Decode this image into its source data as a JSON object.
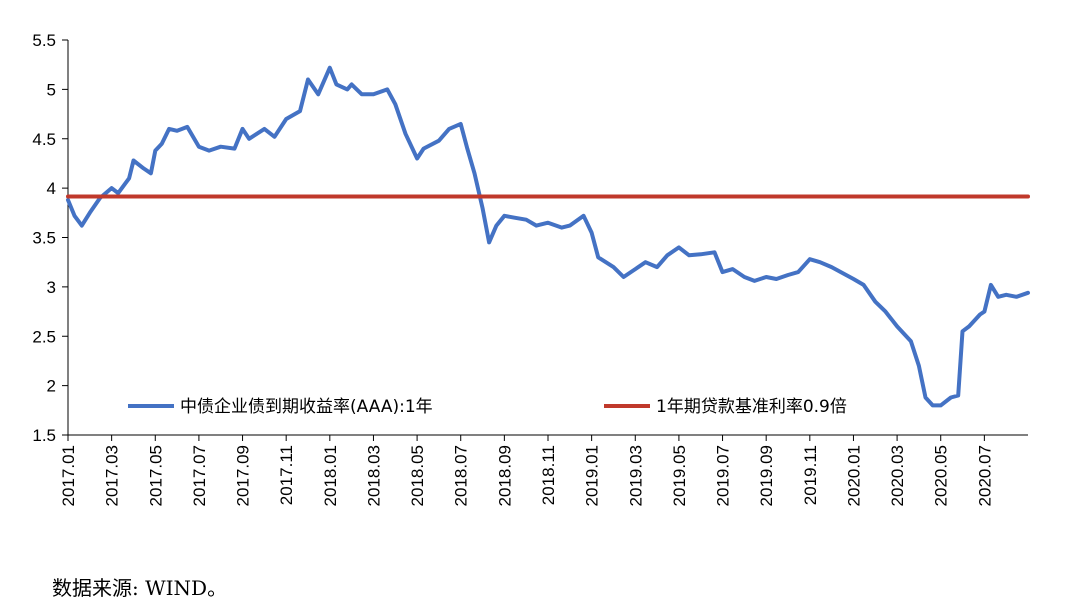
{
  "chart_data": {
    "type": "line",
    "title": "",
    "xlabel": "",
    "ylabel": "",
    "ylim": [
      1.5,
      5.5
    ],
    "yticks": [
      "5.5",
      "5",
      "4.5",
      "4",
      "3.5",
      "3",
      "2.5",
      "2",
      "1.5"
    ],
    "xlim": [
      "2017.01",
      "2020.09"
    ],
    "xticks": [
      "2017.01",
      "2017.03",
      "2017.05",
      "2017.07",
      "2017.09",
      "2017.11",
      "2018.01",
      "2018.03",
      "2018.05",
      "2018.07",
      "2018.09",
      "2018.11",
      "2019.01",
      "2019.03",
      "2019.05",
      "2019.07",
      "2019.09",
      "2019.11",
      "2020.01",
      "2020.03",
      "2020.05",
      "2020.07"
    ],
    "grid": false,
    "legend_position": "bottom",
    "series": [
      {
        "name": "中债企业债到期收益率(AAA):1年",
        "color": "#4472C4",
        "points": [
          [
            "2017.01",
            3.88
          ],
          [
            "2017.01.10",
            3.72
          ],
          [
            "2017.01.20",
            3.62
          ],
          [
            "2017.02",
            3.75
          ],
          [
            "2017.02.15",
            3.9
          ],
          [
            "2017.03",
            4.0
          ],
          [
            "2017.03.10",
            3.95
          ],
          [
            "2017.03.25",
            4.1
          ],
          [
            "2017.04",
            4.28
          ],
          [
            "2017.04.15",
            4.2
          ],
          [
            "2017.04.25",
            4.15
          ],
          [
            "2017.05",
            4.38
          ],
          [
            "2017.05.10",
            4.45
          ],
          [
            "2017.05.20",
            4.6
          ],
          [
            "2017.06",
            4.58
          ],
          [
            "2017.06.15",
            4.62
          ],
          [
            "2017.07",
            4.42
          ],
          [
            "2017.07.15",
            4.38
          ],
          [
            "2017.08",
            4.42
          ],
          [
            "2017.08.20",
            4.4
          ],
          [
            "2017.09",
            4.6
          ],
          [
            "2017.09.10",
            4.5
          ],
          [
            "2017.10",
            4.6
          ],
          [
            "2017.10.15",
            4.52
          ],
          [
            "2017.11",
            4.7
          ],
          [
            "2017.11.20",
            4.78
          ],
          [
            "2017.12",
            5.1
          ],
          [
            "2017.12.15",
            4.95
          ],
          [
            "2018.01",
            5.22
          ],
          [
            "2018.01.10",
            5.05
          ],
          [
            "2018.01.25",
            5.0
          ],
          [
            "2018.02",
            5.05
          ],
          [
            "2018.02.15",
            4.95
          ],
          [
            "2018.03",
            4.95
          ],
          [
            "2018.03.20",
            5.0
          ],
          [
            "2018.04",
            4.85
          ],
          [
            "2018.04.15",
            4.55
          ],
          [
            "2018.05",
            4.3
          ],
          [
            "2018.05.10",
            4.4
          ],
          [
            "2018.06",
            4.48
          ],
          [
            "2018.06.15",
            4.6
          ],
          [
            "2018.07",
            4.65
          ],
          [
            "2018.07.10",
            4.4
          ],
          [
            "2018.07.20",
            4.15
          ],
          [
            "2018.08",
            3.8
          ],
          [
            "2018.08.10",
            3.45
          ],
          [
            "2018.08.20",
            3.62
          ],
          [
            "2018.09",
            3.72
          ],
          [
            "2018.09.15",
            3.7
          ],
          [
            "2018.10",
            3.68
          ],
          [
            "2018.10.15",
            3.62
          ],
          [
            "2018.11",
            3.65
          ],
          [
            "2018.11.20",
            3.6
          ],
          [
            "2018.12",
            3.62
          ],
          [
            "2018.12.20",
            3.72
          ],
          [
            "2019.01",
            3.55
          ],
          [
            "2019.01.10",
            3.3
          ],
          [
            "2019.02",
            3.2
          ],
          [
            "2019.02.15",
            3.1
          ],
          [
            "2019.03",
            3.18
          ],
          [
            "2019.03.15",
            3.25
          ],
          [
            "2019.04",
            3.2
          ],
          [
            "2019.04.15",
            3.32
          ],
          [
            "2019.05",
            3.4
          ],
          [
            "2019.05.15",
            3.32
          ],
          [
            "2019.06",
            3.33
          ],
          [
            "2019.06.20",
            3.35
          ],
          [
            "2019.07",
            3.15
          ],
          [
            "2019.07.15",
            3.18
          ],
          [
            "2019.08",
            3.1
          ],
          [
            "2019.08.15",
            3.06
          ],
          [
            "2019.09",
            3.1
          ],
          [
            "2019.09.15",
            3.08
          ],
          [
            "2019.10",
            3.12
          ],
          [
            "2019.10.15",
            3.15
          ],
          [
            "2019.11",
            3.28
          ],
          [
            "2019.11.15",
            3.25
          ],
          [
            "2019.12",
            3.2
          ],
          [
            "2020.01",
            3.08
          ],
          [
            "2020.01.15",
            3.02
          ],
          [
            "2020.02",
            2.85
          ],
          [
            "2020.02.15",
            2.75
          ],
          [
            "2020.03",
            2.6
          ],
          [
            "2020.03.20",
            2.45
          ],
          [
            "2020.04",
            2.2
          ],
          [
            "2020.04.10",
            1.88
          ],
          [
            "2020.04.20",
            1.8
          ],
          [
            "2020.05",
            1.8
          ],
          [
            "2020.05.15",
            1.88
          ],
          [
            "2020.05.25",
            1.9
          ],
          [
            "2020.06",
            2.55
          ],
          [
            "2020.06.10",
            2.6
          ],
          [
            "2020.06.25",
            2.72
          ],
          [
            "2020.07",
            2.75
          ],
          [
            "2020.07.10",
            3.02
          ],
          [
            "2020.07.20",
            2.9
          ],
          [
            "2020.08",
            2.92
          ],
          [
            "2020.08.15",
            2.9
          ],
          [
            "2020.09",
            2.94
          ]
        ]
      },
      {
        "name": "1年期贷款基准利率0.9倍",
        "color": "#C0392B",
        "points": [
          [
            "2017.01",
            3.915
          ],
          [
            "2020.09",
            3.915
          ]
        ]
      }
    ]
  },
  "source_note": "数据来源: WIND。"
}
